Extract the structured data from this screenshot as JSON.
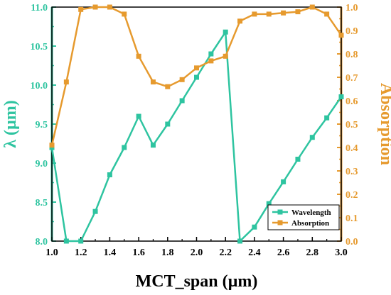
{
  "chart_data": {
    "type": "line",
    "x": [
      1.0,
      1.1,
      1.2,
      1.3,
      1.4,
      1.5,
      1.6,
      1.7,
      1.8,
      1.9,
      2.0,
      2.1,
      2.2,
      2.3,
      2.4,
      2.5,
      2.6,
      2.7,
      2.8,
      2.9,
      3.0
    ],
    "xlabel": "MCT_span (µm)",
    "xlim": [
      1.0,
      3.0
    ],
    "xticks": [
      "1.0",
      "1.2",
      "1.4",
      "1.6",
      "1.8",
      "2.0",
      "2.2",
      "2.4",
      "2.6",
      "2.8",
      "3.0"
    ],
    "ylabel_left": "λ (µm)",
    "ylim_left": [
      8.0,
      11.0
    ],
    "yticks_left": [
      "8.0",
      "8.5",
      "9.0",
      "9.5",
      "10.0",
      "10.5",
      "11.0"
    ],
    "ylabel_right": "Absorption",
    "ylim_right": [
      0.0,
      1.0
    ],
    "yticks_right": [
      "0.0",
      "0.1",
      "0.2",
      "0.3",
      "0.4",
      "0.5",
      "0.6",
      "0.7",
      "0.8",
      "0.9",
      "1.0"
    ],
    "series": [
      {
        "name": "Wavelength",
        "axis": "left",
        "color": "#2ec4a0",
        "values": [
          9.2,
          8.0,
          8.0,
          8.38,
          8.85,
          9.2,
          9.6,
          9.23,
          9.5,
          9.8,
          10.1,
          10.4,
          10.68,
          8.0,
          8.18,
          8.48,
          8.76,
          9.05,
          9.33,
          9.58,
          9.85
        ]
      },
      {
        "name": "Absorption",
        "axis": "right",
        "color": "#e69a2e",
        "values": [
          0.41,
          0.68,
          0.99,
          1.0,
          1.0,
          0.97,
          0.79,
          0.68,
          0.66,
          0.69,
          0.74,
          0.77,
          0.79,
          0.94,
          0.97,
          0.97,
          0.975,
          0.98,
          1.0,
          0.97,
          0.88
        ]
      }
    ],
    "legend_position": "bottom-right",
    "grid": false
  }
}
